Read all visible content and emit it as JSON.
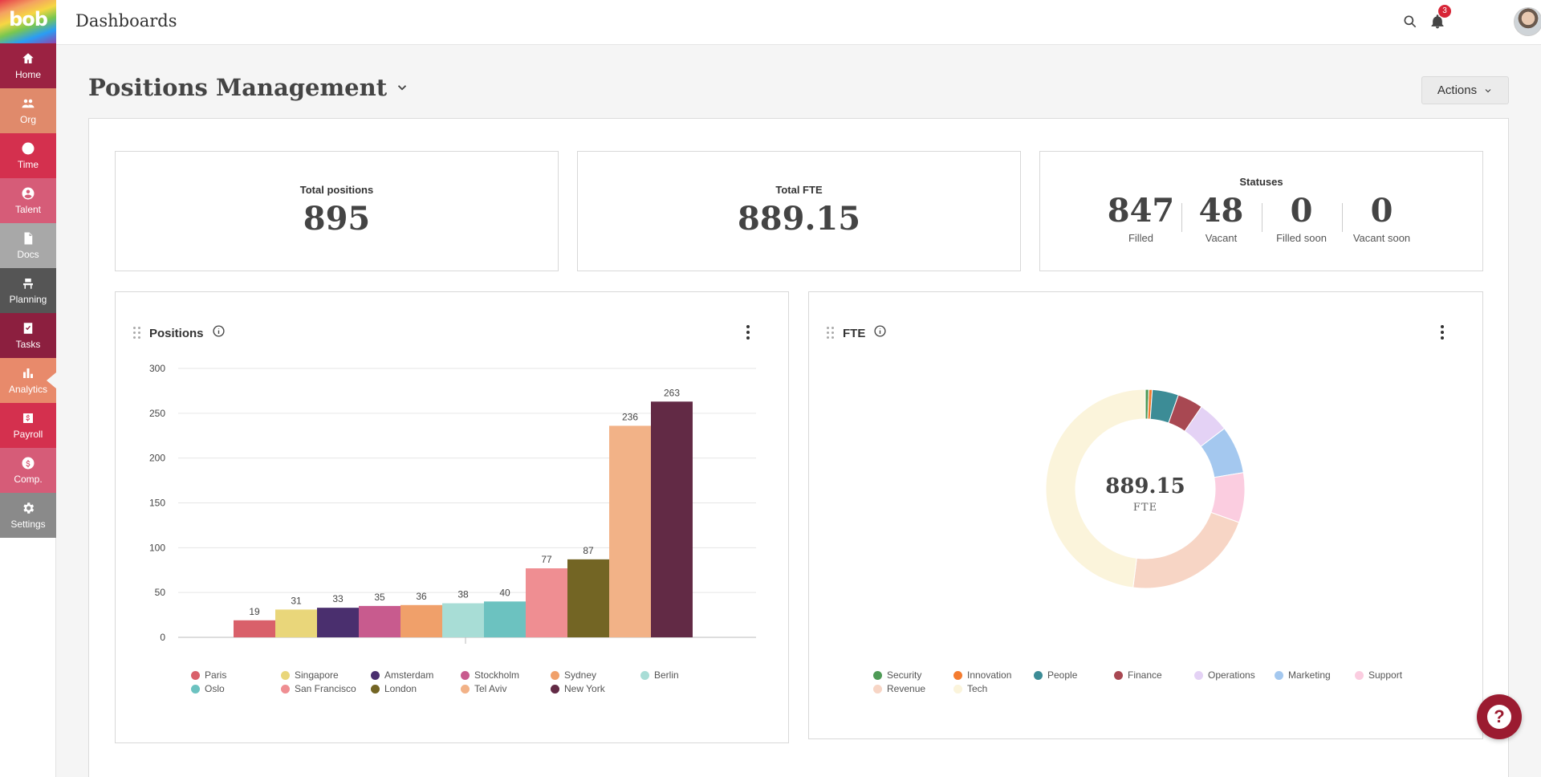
{
  "sidebar": {
    "logo": "bob",
    "items": [
      {
        "label": "Home",
        "color": "#9b2242"
      },
      {
        "label": "Org",
        "color": "#e08a6b"
      },
      {
        "label": "Time",
        "color": "#d4304e"
      },
      {
        "label": "Talent",
        "color": "#d65c78"
      },
      {
        "label": "Docs",
        "color": "#a8a8a8"
      },
      {
        "label": "Planning",
        "color": "#555555"
      },
      {
        "label": "Tasks",
        "color": "#8c1f3f"
      },
      {
        "label": "Analytics",
        "color": "#e88a6b"
      },
      {
        "label": "Payroll",
        "color": "#d4304e"
      },
      {
        "label": "Comp.",
        "color": "#d65c78"
      },
      {
        "label": "Settings",
        "color": "#8a8a8a"
      }
    ]
  },
  "topbar": {
    "title": "Dashboards",
    "notification_count": "3"
  },
  "page": {
    "title": "Positions Management",
    "actions_label": "Actions"
  },
  "kpis": {
    "total_positions": {
      "label": "Total positions",
      "value": "895"
    },
    "total_fte": {
      "label": "Total FTE",
      "value": "889.15"
    },
    "statuses": {
      "label": "Statuses",
      "items": [
        {
          "value": "847",
          "label": "Filled"
        },
        {
          "value": "48",
          "label": "Vacant"
        },
        {
          "value": "0",
          "label": "Filled soon"
        },
        {
          "value": "0",
          "label": "Vacant soon"
        }
      ]
    }
  },
  "positions_widget": {
    "title": "Positions"
  },
  "fte_widget": {
    "title": "FTE",
    "center_value": "889.15",
    "center_label": "FTE"
  },
  "chart_data": [
    {
      "type": "bar",
      "title": "Positions",
      "categories": [
        "Paris",
        "Singapore",
        "Amsterdam",
        "Stockholm",
        "Sydney",
        "Berlin",
        "Oslo",
        "San Francisco",
        "London",
        "Tel Aviv",
        "New York"
      ],
      "values": [
        19,
        31,
        33,
        35,
        36,
        38,
        40,
        77,
        87,
        236,
        263
      ],
      "colors": [
        "#d9606a",
        "#e9d67a",
        "#4a2f6e",
        "#c85b8e",
        "#f0a06a",
        "#a8ddd6",
        "#6cc2c0",
        "#ef8e92",
        "#736524",
        "#f2b287",
        "#622a45"
      ],
      "yticks": [
        0,
        50,
        100,
        150,
        200,
        250,
        300
      ],
      "ylim": [
        0,
        300
      ],
      "grid": true,
      "legend": "bottom"
    },
    {
      "type": "pie",
      "title": "FTE",
      "categories": [
        "Security",
        "Innovation",
        "People",
        "Finance",
        "Operations",
        "Marketing",
        "Support",
        "Revenue",
        "Tech"
      ],
      "values": [
        5,
        5,
        38,
        37,
        45,
        69,
        72,
        191,
        427
      ],
      "colors": [
        "#4e9a56",
        "#f47c30",
        "#3c8c96",
        "#a84852",
        "#e4d2f5",
        "#a4c8ef",
        "#fbcde0",
        "#f7d5c5",
        "#fbf4db"
      ],
      "total": 889.15,
      "legend": "bottom"
    }
  ]
}
